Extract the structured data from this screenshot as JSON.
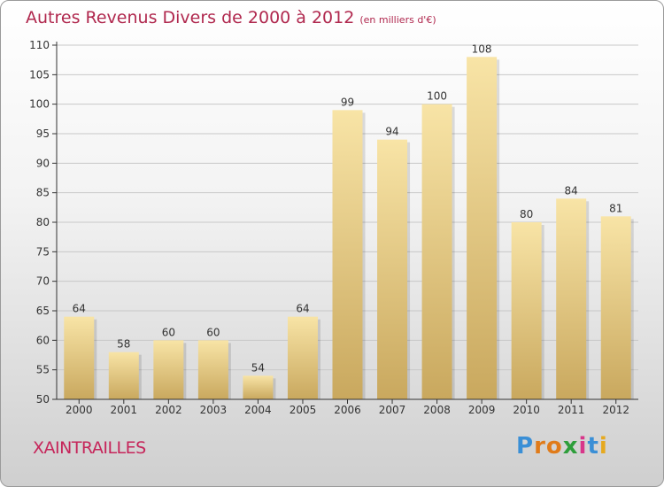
{
  "title": "Autres Revenus Divers de 2000 à 2012",
  "unit": "(en milliers d'€)",
  "commune": "XAINTRAILLES",
  "brand": {
    "letters": [
      "P",
      "r",
      "o",
      "x",
      "i",
      "t",
      "i"
    ],
    "colors": [
      "#3a8fd6",
      "#e07b1a",
      "#e07b1a",
      "#2e9e3b",
      "#d8368a",
      "#3a8fd6",
      "#e6a91f"
    ]
  },
  "colors": {
    "title": "#b0284e",
    "bar_top": "#f8e4a6",
    "bar_bottom": "#c9a85e",
    "grid": "#c8c8c8",
    "axis": "#333333"
  },
  "chart_data": {
    "type": "bar",
    "categories": [
      "2000",
      "2001",
      "2002",
      "2003",
      "2004",
      "2005",
      "2006",
      "2007",
      "2008",
      "2009",
      "2010",
      "2011",
      "2012"
    ],
    "values": [
      64,
      58,
      60,
      60,
      54,
      64,
      99,
      94,
      100,
      108,
      80,
      84,
      81
    ],
    "data_labels": [
      "64",
      "58",
      "60",
      "60",
      "54",
      "64",
      "99",
      "94",
      "100",
      "108",
      "80",
      "84",
      "81"
    ],
    "ylim": [
      50,
      110
    ],
    "yticks": [
      50,
      55,
      60,
      65,
      70,
      75,
      80,
      85,
      90,
      95,
      100,
      105,
      110
    ],
    "grid": true
  }
}
